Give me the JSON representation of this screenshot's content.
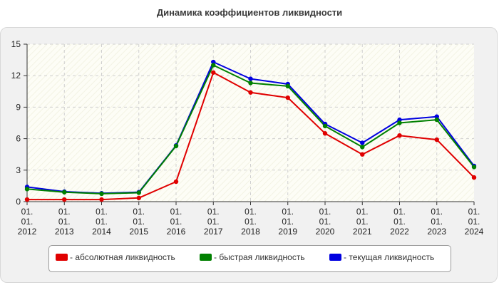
{
  "chart_data": {
    "type": "line",
    "title": "Динамика коэффициентов ликвидности",
    "categories": [
      [
        "01.",
        "01.",
        "2012"
      ],
      [
        "01.",
        "01.",
        "2013"
      ],
      [
        "01.",
        "01.",
        "2014"
      ],
      [
        "01.",
        "01.",
        "2015"
      ],
      [
        "01.",
        "01.",
        "2016"
      ],
      [
        "01.",
        "01.",
        "2017"
      ],
      [
        "01.",
        "01.",
        "2018"
      ],
      [
        "01.",
        "01.",
        "2019"
      ],
      [
        "01.",
        "01.",
        "2020"
      ],
      [
        "01.",
        "01.",
        "2021"
      ],
      [
        "01.",
        "01.",
        "2022"
      ],
      [
        "01.",
        "01.",
        "2023"
      ],
      [
        "01.",
        "01.",
        "2024"
      ]
    ],
    "ylim": [
      0,
      15
    ],
    "yticks": [
      0,
      3,
      6,
      9,
      12,
      15
    ],
    "grid": true,
    "legend_position": "bottom",
    "series": [
      {
        "name": "- абсолютная ликвидность",
        "color": "#e00000",
        "values": [
          0.2,
          0.2,
          0.2,
          0.35,
          1.9,
          12.3,
          10.4,
          9.9,
          6.5,
          4.5,
          6.3,
          5.9,
          2.3
        ]
      },
      {
        "name": "- быстрая ликвидность",
        "color": "#008000",
        "values": [
          1.2,
          0.9,
          0.75,
          0.85,
          5.3,
          13.0,
          11.3,
          11.0,
          7.2,
          5.2,
          7.5,
          7.8,
          3.3
        ]
      },
      {
        "name": "- текущая ликвидность",
        "color": "#0000e0",
        "values": [
          1.4,
          0.95,
          0.8,
          0.9,
          5.35,
          13.3,
          11.7,
          11.2,
          7.4,
          5.6,
          7.8,
          8.1,
          3.4
        ]
      }
    ]
  }
}
